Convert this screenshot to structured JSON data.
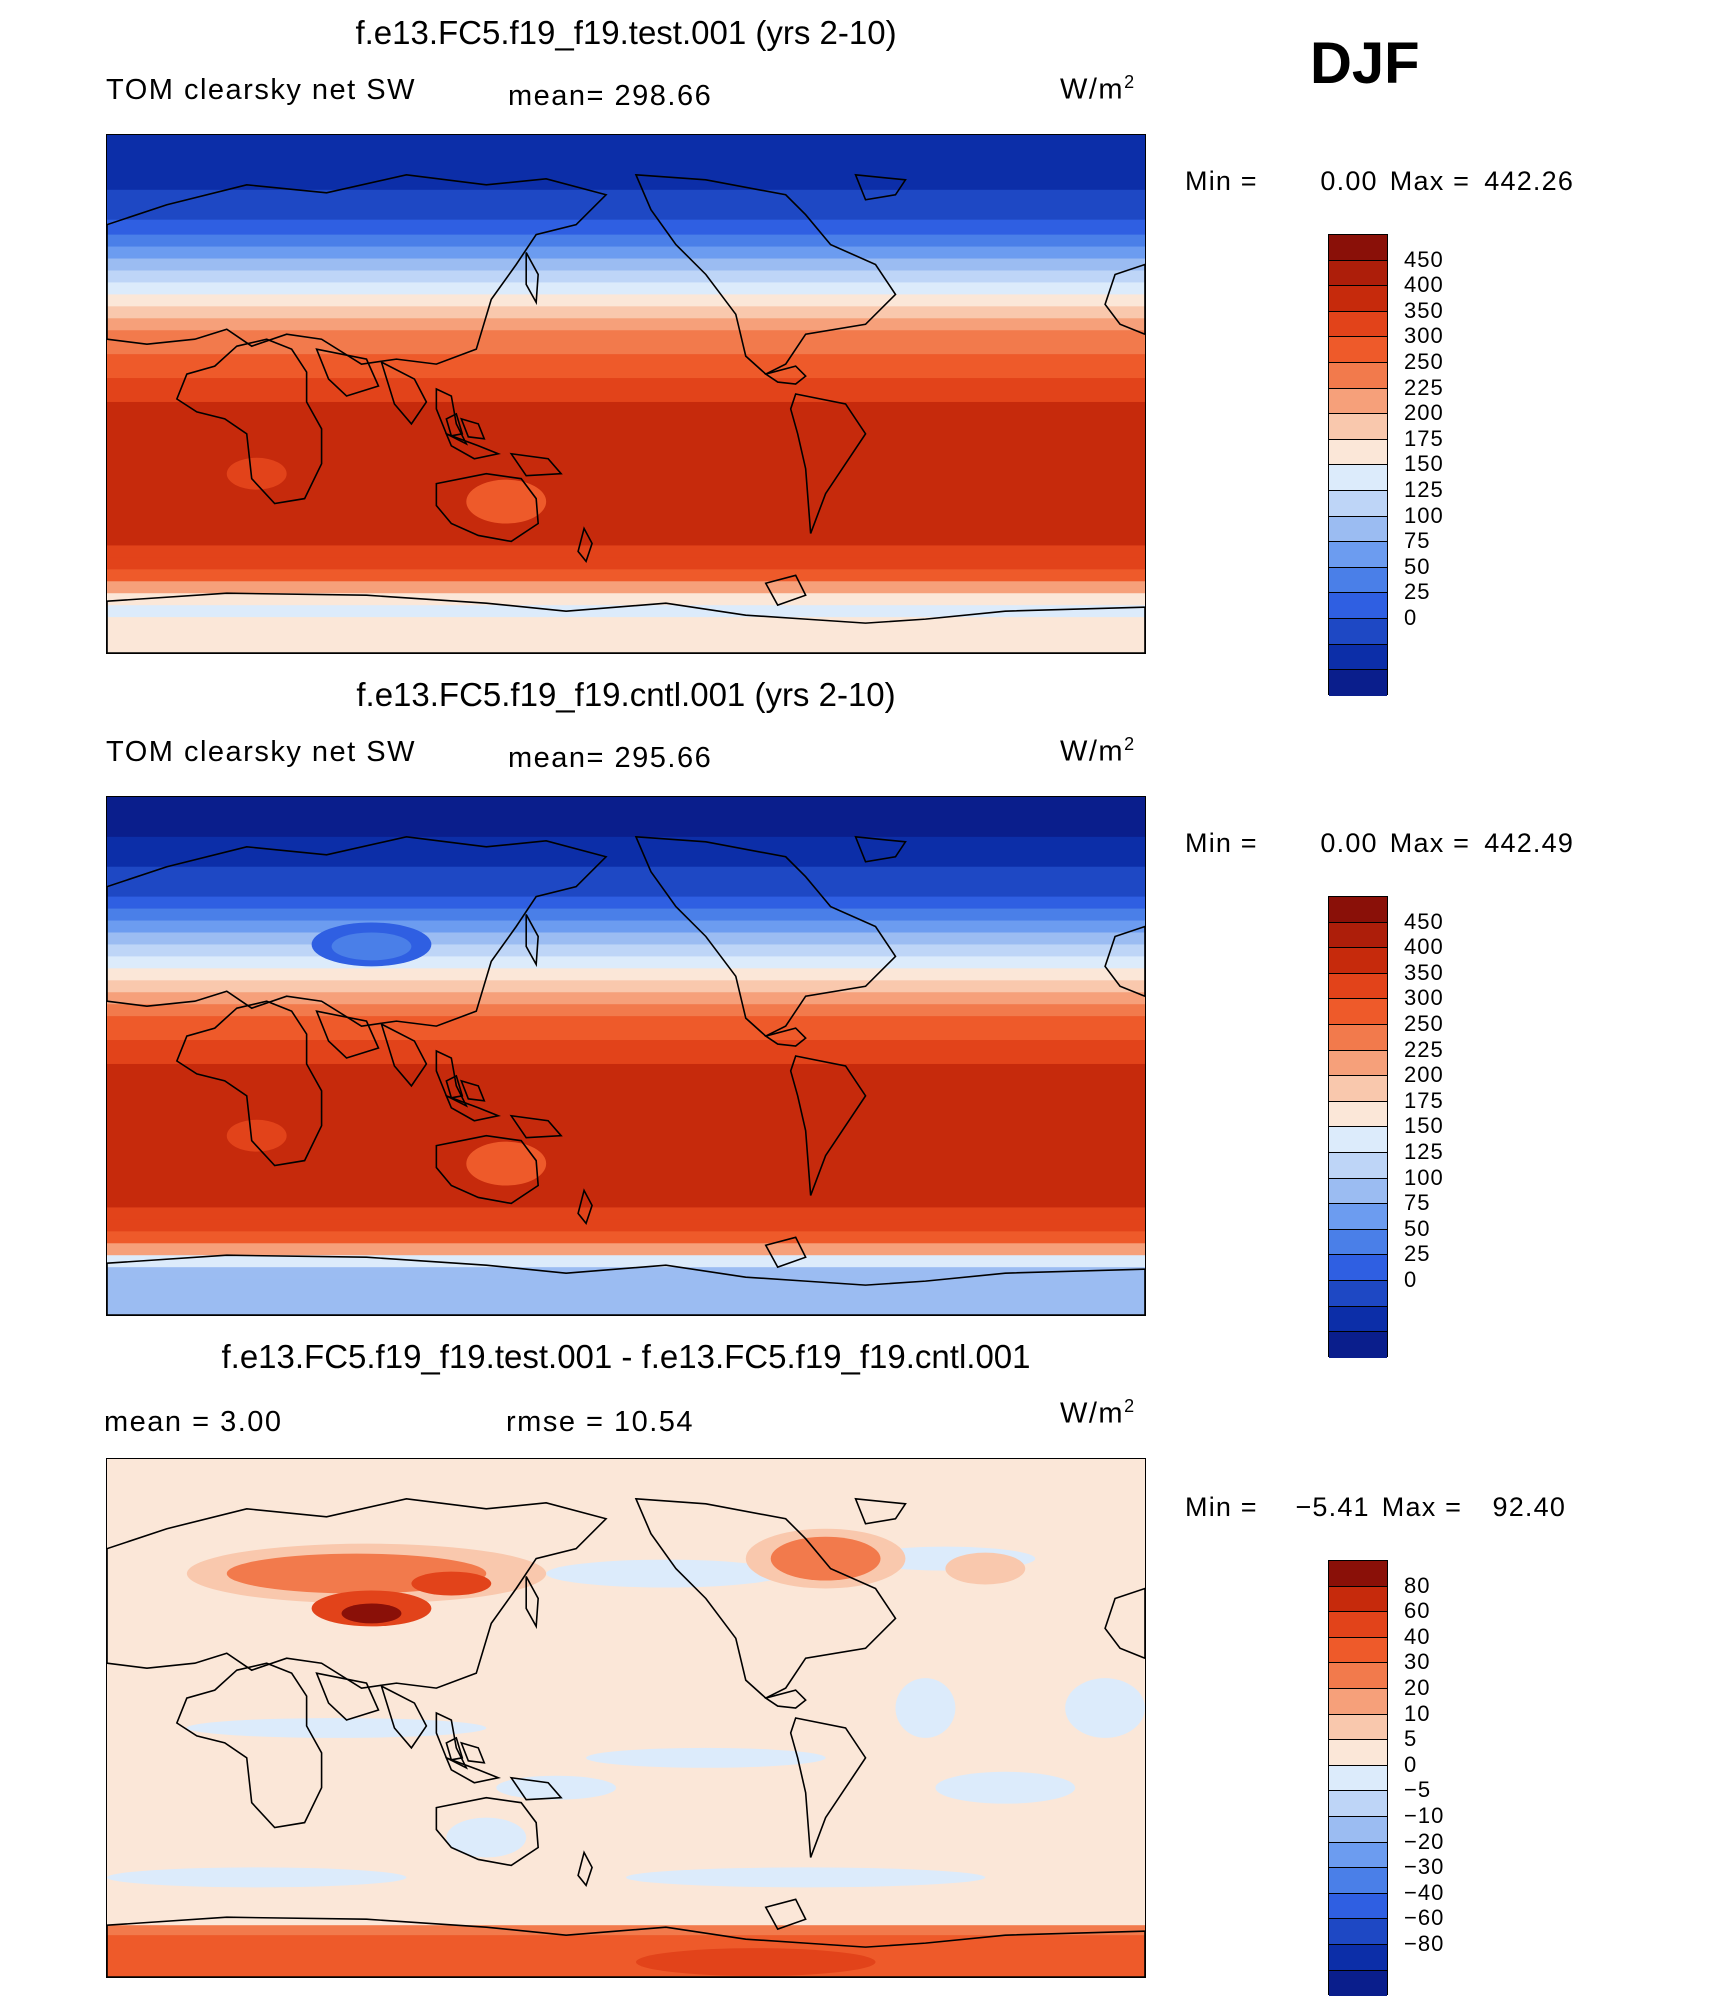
{
  "season": "DJF",
  "units_label": "W/m",
  "units_exp": "2",
  "color_scale": {
    "full": [
      "#0a1e8c",
      "#0c2ea8",
      "#1e48c4",
      "#2f5fe2",
      "#4a7fe8",
      "#6c9cf0",
      "#9bbcf2",
      "#bed5f7",
      "#dcebfb",
      "#fbe7d8",
      "#f9c8ad",
      "#f6a07a",
      "#f27a4c",
      "#ee5a2a",
      "#e2431a",
      "#c62a0c",
      "#ad1e0a",
      "#8a1008"
    ],
    "diff": [
      "#0a1e8c",
      "#0c2ea8",
      "#1e48c4",
      "#2f5fe2",
      "#4a7fe8",
      "#6c9cf0",
      "#9bbcf2",
      "#bed5f7",
      "#dcebfb",
      "#fbe7d8",
      "#f9c8ad",
      "#f6a07a",
      "#f27a4c",
      "#ee5a2a",
      "#e2431a",
      "#c62a0c",
      "#8a1008"
    ]
  },
  "panels": [
    {
      "title": "f.e13.FC5.f19_f19.test.001 (yrs 2-10)",
      "left_label": "TOM clearsky net SW",
      "center_label": "mean=  298.66",
      "min_label": "Min =",
      "min_value": "0.00",
      "max_label": "Max =",
      "max_value": "442.26",
      "ticks": [
        "450",
        "400",
        "350",
        "300",
        "250",
        "225",
        "200",
        "175",
        "150",
        "125",
        "100",
        "75",
        "50",
        "25",
        "0"
      ],
      "variant": "test"
    },
    {
      "title": "f.e13.FC5.f19_f19.cntl.001 (yrs 2-10)",
      "left_label": "TOM clearsky net SW",
      "center_label": "mean=  295.66",
      "min_label": "Min =",
      "min_value": "0.00",
      "max_label": "Max =",
      "max_value": "442.49",
      "ticks": [
        "450",
        "400",
        "350",
        "300",
        "250",
        "225",
        "200",
        "175",
        "150",
        "125",
        "100",
        "75",
        "50",
        "25",
        "0"
      ],
      "variant": "cntl"
    },
    {
      "title": "f.e13.FC5.f19_f19.test.001 - f.e13.FC5.f19_f19.cntl.001",
      "left_label": "mean =    3.00",
      "center_label": "rmse =    10.54",
      "min_label": "Min =",
      "min_value": "−5.41",
      "max_label": "Max =",
      "max_value": "92.40",
      "ticks": [
        "80",
        "60",
        "40",
        "30",
        "20",
        "10",
        "5",
        "0",
        "−5",
        "−10",
        "−20",
        "−30",
        "−40",
        "−60",
        "−80"
      ],
      "variant": "diff"
    }
  ]
}
